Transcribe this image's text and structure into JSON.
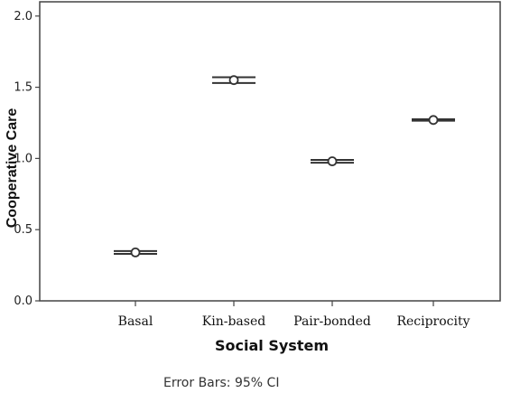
{
  "chart_data": {
    "type": "scatter",
    "title": "",
    "xlabel": "Social System",
    "ylabel": "Cooperative Care",
    "categories": [
      "Basal",
      "Kin-based",
      "Pair-bonded",
      "Reciprocity"
    ],
    "series": [
      {
        "values": [
          0.34,
          1.55,
          0.98,
          1.27
        ],
        "ci_low": [
          0.33,
          1.53,
          0.97,
          1.265
        ],
        "ci_high": [
          0.35,
          1.57,
          0.99,
          1.275
        ]
      }
    ],
    "ylim": [
      0.0,
      2.1
    ],
    "yticks": [
      "0.0",
      "0.5",
      "1.0",
      "1.5",
      "2.0"
    ],
    "grid": false,
    "footnote": "Error Bars: 95% CI",
    "colors": {
      "marker": "#333333",
      "errorbar": "#333333",
      "axis": "#444444"
    }
  }
}
